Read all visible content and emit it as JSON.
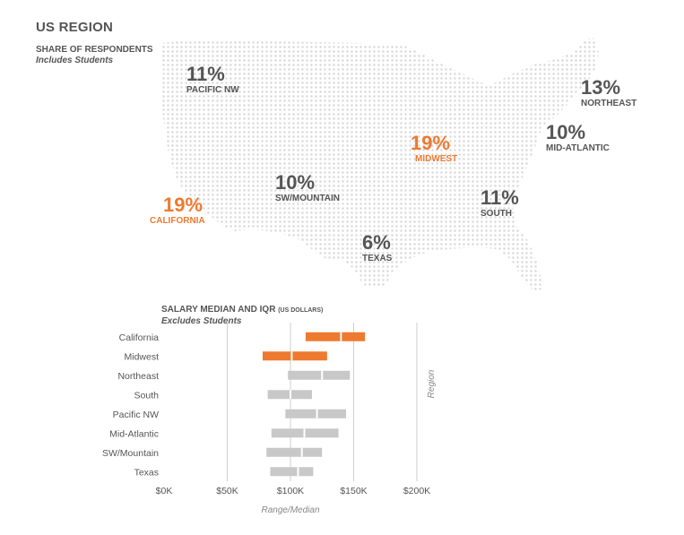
{
  "map": {
    "title": "US REGION",
    "subtitle": "SHARE OF RESPONDENTS",
    "note": "Includes Students",
    "regions": {
      "pacific_nw": {
        "pct": "11%",
        "name": "PACIFIC NW"
      },
      "northeast": {
        "pct": "13%",
        "name": "NORTHEAST"
      },
      "midwest": {
        "pct": "19%",
        "name": "MIDWEST"
      },
      "mid_atlantic": {
        "pct": "10%",
        "name": "MID-ATLANTIC"
      },
      "sw_mountain": {
        "pct": "10%",
        "name": "SW/MOUNTAIN"
      },
      "california": {
        "pct": "19%",
        "name": "CALIFORNIA"
      },
      "south": {
        "pct": "11%",
        "name": "SOUTH"
      },
      "texas": {
        "pct": "6%",
        "name": "TEXAS"
      }
    }
  },
  "colors": {
    "highlight": "#ee7a30",
    "neutral": "#c8c8c8",
    "dots": "#d6d6d6",
    "grid": "#cfcfcf",
    "text": "#555555"
  },
  "chart_data": {
    "type": "bar",
    "orientation": "horizontal",
    "title": "SALARY MEDIAN AND IQR",
    "title_units": "(US DOLLARS)",
    "subtitle": "Excludes Students",
    "xlabel": "Range/Median",
    "ylabel": "Region",
    "xlim": [
      0,
      200000
    ],
    "xticks": [
      0,
      50000,
      100000,
      150000,
      200000
    ],
    "xtick_labels": [
      "$0K",
      "$50K",
      "$100K",
      "$150K",
      "$200K"
    ],
    "grid": true,
    "categories": [
      "California",
      "Midwest",
      "Northeast",
      "South",
      "Pacific NW",
      "Mid-Atlantic",
      "SW/Mountain",
      "Texas"
    ],
    "series": [
      {
        "q1": 112000,
        "median": 140000,
        "q3": 159000,
        "highlight": true
      },
      {
        "q1": 78000,
        "median": 101000,
        "q3": 129000,
        "highlight": true
      },
      {
        "q1": 98000,
        "median": 125000,
        "q3": 147000,
        "highlight": false
      },
      {
        "q1": 82000,
        "median": 100000,
        "q3": 117000,
        "highlight": false
      },
      {
        "q1": 96000,
        "median": 121000,
        "q3": 144000,
        "highlight": false
      },
      {
        "q1": 85000,
        "median": 111000,
        "q3": 138000,
        "highlight": false
      },
      {
        "q1": 81000,
        "median": 109000,
        "q3": 125000,
        "highlight": false
      },
      {
        "q1": 84000,
        "median": 106000,
        "q3": 118000,
        "highlight": false
      }
    ]
  }
}
